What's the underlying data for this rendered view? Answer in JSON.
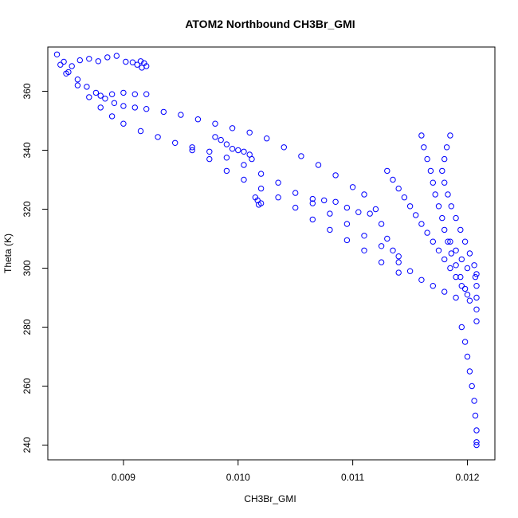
{
  "chart_data": {
    "type": "scatter",
    "title": "ATOM2 Northbound CH3Br_GMI",
    "xlabel": "CH3Br_GMI",
    "ylabel": "Theta (K)",
    "xlim": [
      0.00834,
      0.01224
    ],
    "ylim": [
      235,
      375
    ],
    "xticks": [
      0.009,
      0.01,
      0.011,
      0.012
    ],
    "xtick_labels": [
      "0.009",
      "0.010",
      "0.011",
      "0.012"
    ],
    "yticks": [
      240,
      260,
      280,
      300,
      320,
      340,
      360
    ],
    "ytick_labels": [
      "240",
      "260",
      "280",
      "300",
      "320",
      "340",
      "360"
    ],
    "grid": false,
    "marker": "open-circle",
    "color": "#0000ff",
    "series": [
      {
        "points": [
          [
            0.00842,
            372.5
          ],
          [
            0.00848,
            370.0
          ],
          [
            0.00855,
            368.5
          ],
          [
            0.00862,
            370.5
          ],
          [
            0.0087,
            371.0
          ],
          [
            0.00878,
            370.2
          ],
          [
            0.00886,
            371.5
          ],
          [
            0.00894,
            372.0
          ],
          [
            0.00902,
            370.0
          ],
          [
            0.00908,
            369.8
          ],
          [
            0.00912,
            369.0
          ],
          [
            0.00915,
            370.2
          ],
          [
            0.00918,
            369.5
          ],
          [
            0.0092,
            368.5
          ],
          [
            0.00916,
            368.0
          ],
          [
            0.00845,
            369.0
          ],
          [
            0.00852,
            366.5
          ],
          [
            0.0086,
            364.0
          ],
          [
            0.00868,
            361.5
          ],
          [
            0.00876,
            359.5
          ],
          [
            0.00884,
            357.5
          ],
          [
            0.00892,
            356.0
          ],
          [
            0.009,
            355.0
          ],
          [
            0.0091,
            354.5
          ],
          [
            0.0092,
            354.0
          ],
          [
            0.00935,
            353.0
          ],
          [
            0.0095,
            352.0
          ],
          [
            0.00965,
            350.5
          ],
          [
            0.0098,
            349.0
          ],
          [
            0.00995,
            347.5
          ],
          [
            0.0101,
            346.0
          ],
          [
            0.01025,
            344.0
          ],
          [
            0.0104,
            341.0
          ],
          [
            0.01055,
            338.0
          ],
          [
            0.0107,
            335.0
          ],
          [
            0.01085,
            331.5
          ],
          [
            0.011,
            327.5
          ],
          [
            0.0111,
            325.0
          ],
          [
            0.0085,
            366.0
          ],
          [
            0.0086,
            362.0
          ],
          [
            0.0087,
            358.0
          ],
          [
            0.0088,
            354.5
          ],
          [
            0.0089,
            351.5
          ],
          [
            0.009,
            349.0
          ],
          [
            0.00915,
            346.5
          ],
          [
            0.0093,
            344.5
          ],
          [
            0.00945,
            342.5
          ],
          [
            0.0096,
            341.0
          ],
          [
            0.00975,
            339.5
          ],
          [
            0.0099,
            337.5
          ],
          [
            0.01005,
            335.0
          ],
          [
            0.0102,
            332.0
          ],
          [
            0.01035,
            329.0
          ],
          [
            0.0105,
            325.5
          ],
          [
            0.01065,
            322.0
          ],
          [
            0.0108,
            318.5
          ],
          [
            0.01095,
            315.0
          ],
          [
            0.0111,
            311.0
          ],
          [
            0.01125,
            307.5
          ],
          [
            0.0114,
            304.0
          ],
          [
            0.0088,
            358.5
          ],
          [
            0.0089,
            359.0
          ],
          [
            0.009,
            359.5
          ],
          [
            0.0091,
            359.0
          ],
          [
            0.0092,
            359.0
          ],
          [
            0.0098,
            344.5
          ],
          [
            0.00985,
            343.5
          ],
          [
            0.0099,
            342.0
          ],
          [
            0.00995,
            340.5
          ],
          [
            0.01,
            340.0
          ],
          [
            0.01005,
            339.5
          ],
          [
            0.0101,
            338.5
          ],
          [
            0.01012,
            337.0
          ],
          [
            0.01015,
            324.0
          ],
          [
            0.01017,
            323.0
          ],
          [
            0.0102,
            322.0
          ],
          [
            0.01018,
            321.5
          ],
          [
            0.01065,
            323.5
          ],
          [
            0.01075,
            323.0
          ],
          [
            0.01085,
            322.5
          ],
          [
            0.01095,
            320.5
          ],
          [
            0.01105,
            319.0
          ],
          [
            0.01115,
            318.5
          ],
          [
            0.0096,
            340.0
          ],
          [
            0.00975,
            337.0
          ],
          [
            0.0099,
            333.0
          ],
          [
            0.01005,
            330.0
          ],
          [
            0.0102,
            327.0
          ],
          [
            0.01035,
            324.0
          ],
          [
            0.0105,
            320.5
          ],
          [
            0.01065,
            316.5
          ],
          [
            0.0108,
            313.0
          ],
          [
            0.01095,
            309.5
          ],
          [
            0.0111,
            306.0
          ],
          [
            0.01125,
            302.0
          ],
          [
            0.0114,
            298.5
          ],
          [
            0.0113,
            333.0
          ],
          [
            0.01135,
            330.0
          ],
          [
            0.0114,
            327.0
          ],
          [
            0.01145,
            324.0
          ],
          [
            0.0115,
            321.0
          ],
          [
            0.01155,
            318.0
          ],
          [
            0.0116,
            315.0
          ],
          [
            0.01165,
            312.0
          ],
          [
            0.0117,
            309.0
          ],
          [
            0.01175,
            306.0
          ],
          [
            0.0118,
            303.0
          ],
          [
            0.01185,
            300.0
          ],
          [
            0.0119,
            297.0
          ],
          [
            0.01195,
            294.0
          ],
          [
            0.012,
            291.0
          ],
          [
            0.0116,
            345.0
          ],
          [
            0.01162,
            341.0
          ],
          [
            0.01165,
            337.0
          ],
          [
            0.01168,
            333.0
          ],
          [
            0.0117,
            329.0
          ],
          [
            0.01172,
            325.0
          ],
          [
            0.01175,
            321.0
          ],
          [
            0.01178,
            317.0
          ],
          [
            0.0118,
            313.0
          ],
          [
            0.01183,
            309.0
          ],
          [
            0.01186,
            305.0
          ],
          [
            0.0119,
            301.0
          ],
          [
            0.01194,
            297.0
          ],
          [
            0.01198,
            293.0
          ],
          [
            0.01202,
            289.0
          ],
          [
            0.01185,
            345.0
          ],
          [
            0.01182,
            341.0
          ],
          [
            0.0118,
            337.0
          ],
          [
            0.01178,
            333.0
          ],
          [
            0.0118,
            329.0
          ],
          [
            0.01183,
            325.0
          ],
          [
            0.01186,
            321.0
          ],
          [
            0.0119,
            317.0
          ],
          [
            0.01194,
            313.0
          ],
          [
            0.01198,
            309.0
          ],
          [
            0.01202,
            305.0
          ],
          [
            0.01206,
            301.0
          ],
          [
            0.01207,
            297.0
          ],
          [
            0.0112,
            320.0
          ],
          [
            0.01125,
            315.0
          ],
          [
            0.0113,
            310.0
          ],
          [
            0.01135,
            306.0
          ],
          [
            0.0114,
            302.0
          ],
          [
            0.0115,
            299.0
          ],
          [
            0.0116,
            296.0
          ],
          [
            0.0117,
            294.0
          ],
          [
            0.0118,
            292.0
          ],
          [
            0.0119,
            290.0
          ],
          [
            0.01195,
            280.0
          ],
          [
            0.01198,
            275.0
          ],
          [
            0.012,
            270.0
          ],
          [
            0.01202,
            265.0
          ],
          [
            0.01204,
            260.0
          ],
          [
            0.01206,
            255.0
          ],
          [
            0.01207,
            250.0
          ],
          [
            0.01208,
            245.0
          ],
          [
            0.01208,
            241.0
          ],
          [
            0.01208,
            240.0
          ],
          [
            0.01208,
            282.0
          ],
          [
            0.01208,
            286.0
          ],
          [
            0.01208,
            290.0
          ],
          [
            0.01208,
            294.0
          ],
          [
            0.01208,
            298.0
          ],
          [
            0.012,
            300.0
          ],
          [
            0.01195,
            303.0
          ],
          [
            0.0119,
            306.0
          ],
          [
            0.01185,
            309.0
          ]
        ]
      }
    ]
  }
}
